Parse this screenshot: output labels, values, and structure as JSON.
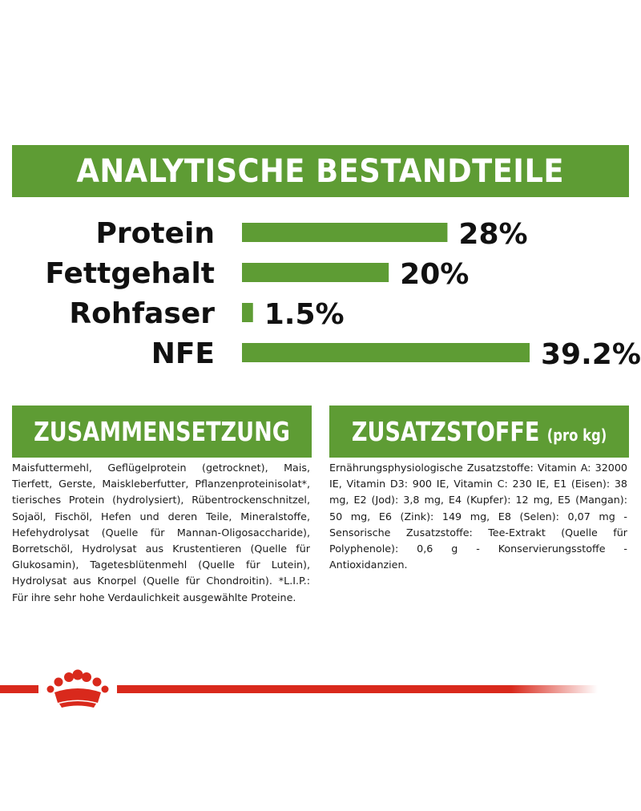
{
  "header": {
    "title": "ANALYTISCHE BESTANDTEILE"
  },
  "chart_data": {
    "type": "bar",
    "orientation": "horizontal",
    "title": "ANALYTISCHE BESTANDTEILE",
    "categories": [
      "Protein",
      "Fettgehalt",
      "Rohfaser",
      "NFE"
    ],
    "values": [
      28,
      20,
      1.5,
      39.2
    ],
    "value_labels": [
      "28%",
      "20%",
      "1.5%",
      "39.2%"
    ],
    "unit": "%",
    "bar_color": "#5e9c34"
  },
  "composition": {
    "title": "ZUSAMMENSETZUNG",
    "text": "Maisfuttermehl, Geflügelprotein (getrocknet), Mais, Tierfett, Gerste, Maiskleberfutter, Pflanzenproteinisolat*, tierisches Protein (hydrolysiert), Rübentrockenschnitzel, Sojaöl, Fischöl, Hefen und deren Teile, Mineralstoffe, Hefehydrolysat (Quelle für Mannan-Oligosaccharide), Borretschöl, Hydrolysat aus Krustentieren (Quelle für Glukosamin), Tagetesblütenmehl (Quelle für Lutein), Hydrolysat aus Knorpel (Quelle für Chondroitin). *L.I.P.: Für ihre sehr hohe Verdaulichkeit ausgewählte Proteine."
  },
  "additives": {
    "title": "ZUSATZSTOFFE",
    "unit": "(pro kg)",
    "text": "Ernährungsphysiologische Zusatzstoffe: Vitamin A: 32000 IE, Vitamin D3: 900 IE, Vitamin C: 230 IE, E1 (Eisen): 38 mg, E2 (Jod): 3,8 mg, E4 (Kupfer): 12 mg, E5 (Mangan): 50 mg, E6 (Zink): 149 mg, E8 (Selen): 0,07 mg - Sensorische Zusatzstoffe: Tee-Extrakt (Quelle für Polyphenole): 0,6 g - Konservierungsstoffe - Antioxidanzien."
  },
  "colors": {
    "green": "#5e9c34",
    "red": "#d9291c"
  },
  "footer": {
    "logo": "crown-logo-icon"
  }
}
